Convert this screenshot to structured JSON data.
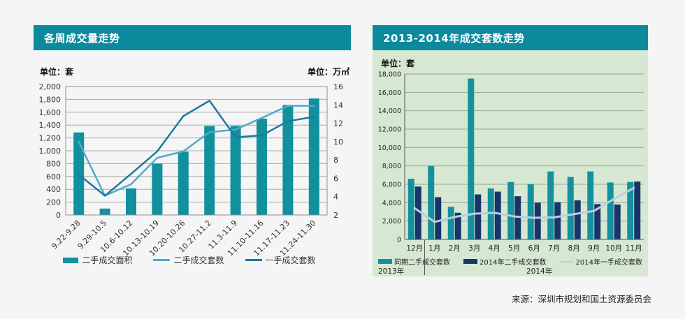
{
  "source": "来源：深圳市规划和国土资源委员会",
  "chart_data": [
    {
      "type": "bar+line",
      "title": "各周成交量走势",
      "unit_left": "单位：套",
      "unit_right": "单位：万㎡",
      "categories": [
        "9.22-9.28",
        "9.29-10.5",
        "10.6-10.12",
        "10.13-10.19",
        "10.20-10.26",
        "10.27-11.2",
        "11.3-11.9",
        "11.10-11.16",
        "11.17-11.23",
        "11.24-11.30"
      ],
      "left_axis": {
        "min": 0,
        "max": 2000,
        "step": 200,
        "unit": "套"
      },
      "right_axis": {
        "min": 2,
        "max": 16,
        "step": 2,
        "unit": "万㎡"
      },
      "grid": true,
      "legend_position": "bottom",
      "series": [
        {
          "name": "二手成交面积",
          "type": "bar",
          "axis": "right",
          "unit": "万㎡",
          "color": "#11909e",
          "values": [
            11.0,
            2.7,
            4.9,
            7.6,
            8.9,
            11.7,
            11.7,
            12.5,
            14.0,
            14.7
          ]
        },
        {
          "name": "二手成交套数",
          "type": "line",
          "axis": "left",
          "unit": "套",
          "color": "#4fabc9",
          "values": [
            1140,
            300,
            480,
            890,
            990,
            1290,
            1330,
            1510,
            1700,
            1700
          ]
        },
        {
          "name": "一手成交套数",
          "type": "line",
          "axis": "left",
          "unit": "套",
          "color": "#20789d",
          "values": [
            630,
            300,
            640,
            990,
            1540,
            1780,
            1210,
            1240,
            1460,
            1530
          ]
        }
      ]
    },
    {
      "type": "bar+line",
      "title": "2013-2014年成交套数走势",
      "unit_left": "单位：套",
      "categories": [
        "12月",
        "1月",
        "2月",
        "3月",
        "4月",
        "5月",
        "6月",
        "7月",
        "8月",
        "9月",
        "10月",
        "11月"
      ],
      "left_axis": {
        "min": 0,
        "max": 18000,
        "step": 2000,
        "unit": "套"
      },
      "grid": true,
      "legend_position": "bottom",
      "x_groups": [
        {
          "label": "2013年",
          "span": [
            0,
            0
          ]
        },
        {
          "label": "2014年",
          "span": [
            1,
            11
          ]
        }
      ],
      "series": [
        {
          "name": "同期二手成交套数",
          "type": "bar",
          "axis": "left",
          "unit": "套",
          "color": "#13919e",
          "values": [
            6600,
            8000,
            3550,
            17500,
            5550,
            6250,
            6000,
            7400,
            6800,
            7400,
            6200,
            6250
          ]
        },
        {
          "name": "2014年二手成交套数",
          "type": "bar",
          "axis": "left",
          "unit": "套",
          "color": "#17356b",
          "values": [
            5750,
            4600,
            2900,
            4900,
            5200,
            4700,
            4000,
            4050,
            4250,
            3850,
            3800,
            6300
          ]
        },
        {
          "name": "2014年一手成交套数",
          "type": "line",
          "axis": "left",
          "unit": "套",
          "color": "#b9cfdf",
          "values": [
            3400,
            1900,
            2450,
            2800,
            2900,
            2500,
            2350,
            2400,
            2750,
            3100,
            4400,
            5600
          ]
        }
      ]
    }
  ]
}
